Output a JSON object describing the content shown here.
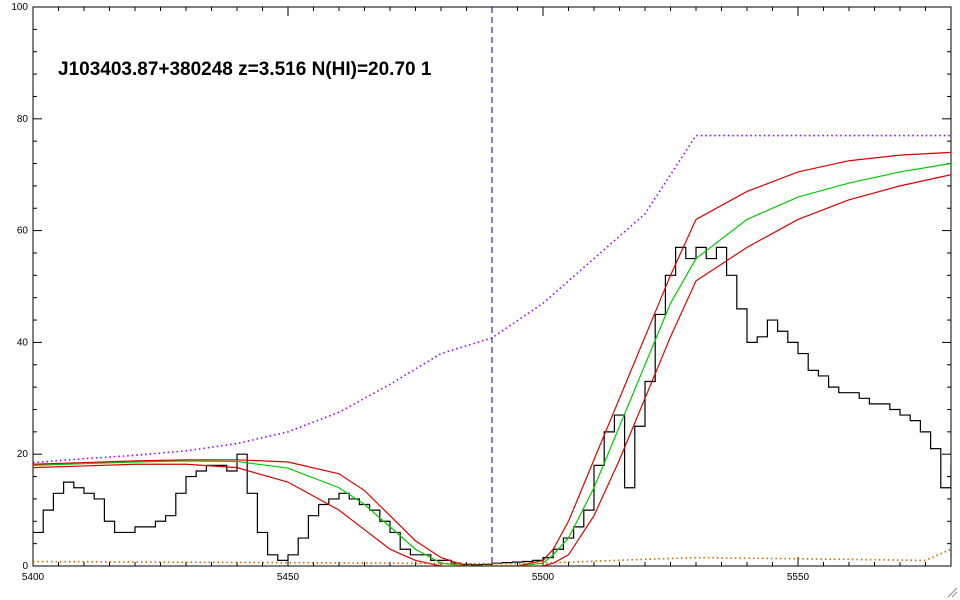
{
  "chart_data": {
    "type": "line",
    "title": "J103403.87+380248 z=3.516 N(HI)=20.70 1",
    "xlabel": "",
    "ylabel": "",
    "xlim": [
      5400,
      5580
    ],
    "ylim": [
      0,
      100
    ],
    "x_ticks": [
      5400,
      5450,
      5500,
      5550
    ],
    "y_ticks": [
      0,
      20,
      40,
      60,
      80,
      100
    ],
    "grid": false,
    "legend": "none",
    "vline": {
      "x": 5490,
      "color": "#0000cc",
      "style": "dashed"
    },
    "series": [
      {
        "role": "observed-flux",
        "color": "#000000",
        "style": "step",
        "x": [
          5400,
          5402,
          5404,
          5406,
          5408,
          5410,
          5412,
          5414,
          5416,
          5418,
          5420,
          5422,
          5424,
          5426,
          5428,
          5430,
          5432,
          5434,
          5436,
          5438,
          5440,
          5442,
          5444,
          5446,
          5448,
          5450,
          5452,
          5454,
          5456,
          5458,
          5460,
          5462,
          5464,
          5466,
          5468,
          5470,
          5472,
          5474,
          5476,
          5478,
          5480,
          5482,
          5484,
          5486,
          5488,
          5490,
          5492,
          5494,
          5496,
          5498,
          5500,
          5502,
          5504,
          5506,
          5508,
          5510,
          5512,
          5514,
          5516,
          5518,
          5520,
          5522,
          5524,
          5526,
          5528,
          5530,
          5532,
          5534,
          5536,
          5538,
          5540,
          5542,
          5544,
          5546,
          5548,
          5550,
          5552,
          5554,
          5556,
          5558,
          5560,
          5562,
          5564,
          5566,
          5568,
          5570,
          5572,
          5574,
          5576,
          5578,
          5580
        ],
        "y": [
          6,
          10,
          13,
          15,
          14,
          13,
          12,
          8,
          6,
          6,
          7,
          7,
          8,
          9,
          13,
          16,
          17,
          18,
          18,
          17,
          20,
          13,
          6,
          2,
          1,
          2,
          5,
          9,
          11,
          12,
          13,
          12,
          11,
          10,
          8,
          6,
          3,
          2,
          2,
          1,
          1,
          0.5,
          0.3,
          0.2,
          0.3,
          0.5,
          0.6,
          0.7,
          0.8,
          1,
          1.5,
          3,
          5,
          7,
          10,
          18,
          24,
          27,
          14,
          25,
          33,
          45,
          52,
          57,
          55,
          57,
          55,
          57,
          52,
          46,
          40,
          41,
          44,
          42,
          40,
          38,
          35,
          34,
          32,
          31,
          31,
          30,
          29,
          29,
          28,
          27,
          26,
          24,
          21,
          14,
          18
        ]
      },
      {
        "role": "continuum",
        "color": "#9900ff",
        "style": "dotted",
        "x": [
          5400,
          5410,
          5420,
          5430,
          5440,
          5450,
          5460,
          5470,
          5480,
          5490,
          5500,
          5510,
          5520,
          5530,
          5580
        ],
        "y": [
          18.5,
          19.2,
          19.8,
          20.6,
          21.9,
          24,
          27.5,
          32.5,
          38,
          40.8,
          47,
          55,
          63,
          77,
          77
        ]
      },
      {
        "role": "dla-model",
        "color": "#00cc00",
        "style": "solid",
        "x": [
          5400,
          5410,
          5420,
          5430,
          5440,
          5450,
          5460,
          5465,
          5470,
          5475,
          5480,
          5485,
          5490,
          5495,
          5500,
          5502,
          5505,
          5510,
          5515,
          5520,
          5525,
          5530,
          5540,
          5550,
          5560,
          5570,
          5580
        ],
        "y": [
          18,
          18.3,
          18.6,
          18.8,
          18.7,
          17.5,
          14,
          11,
          7,
          3,
          0.5,
          0,
          0,
          0,
          0.5,
          2,
          5,
          14,
          25,
          36,
          47,
          55,
          62,
          66,
          68.5,
          70.5,
          72
        ]
      },
      {
        "role": "dla-model-upper",
        "color": "#dd0000",
        "style": "solid",
        "x": [
          5400,
          5410,
          5420,
          5430,
          5440,
          5450,
          5460,
          5465,
          5470,
          5475,
          5480,
          5485,
          5490,
          5495,
          5500,
          5502,
          5505,
          5510,
          5515,
          5520,
          5525,
          5530,
          5540,
          5550,
          5560,
          5570,
          5580
        ],
        "y": [
          18.2,
          18.5,
          18.8,
          19,
          19,
          18.6,
          16.5,
          13.5,
          9,
          4.5,
          1.5,
          0,
          0,
          0,
          1,
          3,
          8,
          19,
          30,
          41,
          52,
          62,
          67,
          70.5,
          72.5,
          73.5,
          74
        ]
      },
      {
        "role": "dla-model-lower",
        "color": "#dd0000",
        "style": "solid",
        "x": [
          5400,
          5410,
          5420,
          5430,
          5440,
          5450,
          5460,
          5465,
          5470,
          5475,
          5480,
          5485,
          5490,
          5495,
          5500,
          5502,
          5505,
          5510,
          5515,
          5520,
          5525,
          5530,
          5540,
          5550,
          5560,
          5570,
          5580
        ],
        "y": [
          17.6,
          17.9,
          18.2,
          18.2,
          17.6,
          15,
          10,
          6.5,
          3,
          1,
          0,
          0,
          0,
          0,
          0,
          0.5,
          2,
          9,
          19,
          30,
          41,
          51,
          57,
          62,
          65.5,
          68,
          70
        ]
      },
      {
        "role": "error",
        "color": "#cc6600",
        "style": "dotted",
        "x": [
          5400,
          5450,
          5490,
          5500,
          5520,
          5530,
          5550,
          5575,
          5580
        ],
        "y": [
          0.8,
          0.6,
          0.4,
          0.5,
          1.2,
          1.5,
          1.3,
          1.0,
          3
        ]
      }
    ]
  }
}
